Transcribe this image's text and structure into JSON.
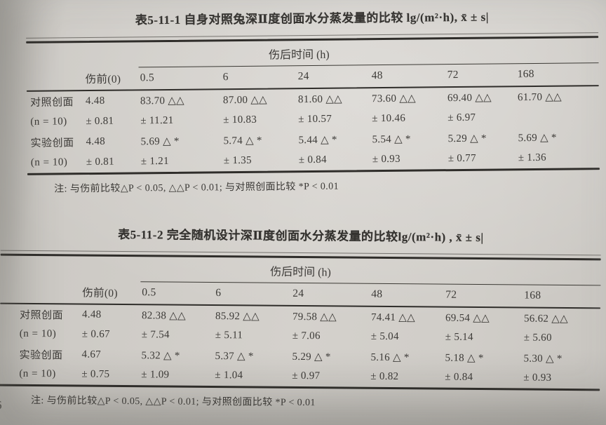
{
  "page": {
    "partial_page_number": "6"
  },
  "table1": {
    "title": "表5-11-1  自身对照兔深Ⅱ度创面水分蒸发量的比较 lg/(m²·h), x̄ ± s|",
    "header": {
      "spanner": "伤后时间 (h)",
      "pre_injury": "伤前(0)",
      "times": [
        "0.5",
        "6",
        "24",
        "48",
        "72",
        "168"
      ]
    },
    "rows": [
      {
        "label": "对照创面",
        "cells": [
          "4.48",
          "83.70 △△",
          "87.00 △△",
          "81.60 △△",
          "73.60 △△",
          "69.40 △△",
          "61.70 △△"
        ]
      },
      {
        "label": "(n = 10)",
        "cells": [
          "± 0.81",
          "± 11.21",
          "± 10.83",
          "± 10.57",
          "± 10.46",
          "± 6.97",
          ""
        ]
      },
      {
        "label": "实验创面",
        "cells": [
          "4.48",
          "5.69 △ *",
          "5.74 △ *",
          "5.44 △ *",
          "5.54 △ *",
          "5.29 △ *",
          "5.69 △ *"
        ]
      },
      {
        "label": "(n = 10)",
        "cells": [
          "± 0.81",
          "± 1.21",
          "± 1.35",
          "± 0.84",
          "± 0.93",
          "± 0.77",
          "± 1.36"
        ]
      }
    ],
    "note": "注: 与伤前比较△P < 0.05, △△P < 0.01; 与对照创面比较 *P < 0.01"
  },
  "table2": {
    "title": "表5-11-2  完全随机设计深Ⅱ度创面水分蒸发量的比较lg/(m²·h) , x̄ ± s|",
    "header": {
      "spanner": "伤后时间 (h)",
      "pre_injury": "伤前(0)",
      "times": [
        "0.5",
        "6",
        "24",
        "48",
        "72",
        "168"
      ]
    },
    "rows": [
      {
        "label": "对照创面",
        "cells": [
          "4.48",
          "82.38 △△",
          "85.92 △△",
          "79.58 △△",
          "74.41 △△",
          "69.54 △△",
          "56.62 △△"
        ]
      },
      {
        "label": "(n = 10)",
        "cells": [
          "± 0.67",
          "± 7.54",
          "± 5.11",
          "± 7.06",
          "± 5.04",
          "± 5.14",
          "± 5.60"
        ]
      },
      {
        "label": "实验创面",
        "cells": [
          "4.67",
          "5.32 △ *",
          "5.37 △ *",
          "5.29 △ *",
          "5.16 △ *",
          "5.18 △ *",
          "5.30 △ *"
        ]
      },
      {
        "label": "(n = 10)",
        "cells": [
          "± 0.75",
          "± 1.09",
          "± 1.04",
          "± 0.97",
          "± 0.82",
          "± 0.84",
          "± 0.93"
        ]
      }
    ],
    "note": "注: 与伤前比较△P < 0.05, △△P < 0.01; 与对照创面比较 *P < 0.01"
  }
}
